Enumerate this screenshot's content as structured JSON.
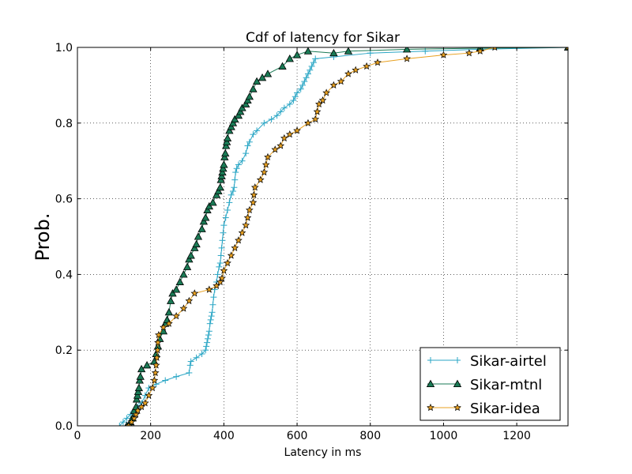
{
  "chart_data": {
    "type": "line",
    "title": "Cdf of latency for Sikar",
    "xlabel": "Latency in ms",
    "ylabel": "Prob.",
    "xlim": [
      0,
      1340
    ],
    "ylim": [
      0,
      1.0
    ],
    "xticks": [
      "0",
      "200",
      "400",
      "600",
      "800",
      "1000",
      "1200"
    ],
    "xtick_values": [
      0,
      200,
      400,
      600,
      800,
      1000,
      1200
    ],
    "yticks": [
      "0.0",
      "0.2",
      "0.4",
      "0.6",
      "0.8",
      "1.0"
    ],
    "ytick_values": [
      0,
      0.2,
      0.4,
      0.6,
      0.8,
      1.0
    ],
    "grid": true,
    "legend_position": "lower-right",
    "series": [
      {
        "name": "Sikar-airtel",
        "color": "#2aa6c5",
        "marker": "plus",
        "points": [
          [
            115,
            0.0
          ],
          [
            125,
            0.01
          ],
          [
            135,
            0.02
          ],
          [
            145,
            0.03
          ],
          [
            155,
            0.04
          ],
          [
            165,
            0.05
          ],
          [
            175,
            0.06
          ],
          [
            185,
            0.08
          ],
          [
            195,
            0.1
          ],
          [
            215,
            0.11
          ],
          [
            240,
            0.12
          ],
          [
            270,
            0.13
          ],
          [
            305,
            0.14
          ],
          [
            308,
            0.16
          ],
          [
            310,
            0.17
          ],
          [
            325,
            0.18
          ],
          [
            340,
            0.19
          ],
          [
            350,
            0.2
          ],
          [
            352,
            0.21
          ],
          [
            354,
            0.22
          ],
          [
            356,
            0.23
          ],
          [
            358,
            0.24
          ],
          [
            360,
            0.25
          ],
          [
            362,
            0.27
          ],
          [
            364,
            0.28
          ],
          [
            366,
            0.29
          ],
          [
            368,
            0.3
          ],
          [
            370,
            0.32
          ],
          [
            372,
            0.34
          ],
          [
            375,
            0.36
          ],
          [
            380,
            0.38
          ],
          [
            383,
            0.4
          ],
          [
            387,
            0.42
          ],
          [
            390,
            0.43
          ],
          [
            392,
            0.45
          ],
          [
            394,
            0.47
          ],
          [
            396,
            0.49
          ],
          [
            398,
            0.51
          ],
          [
            400,
            0.53
          ],
          [
            405,
            0.55
          ],
          [
            410,
            0.57
          ],
          [
            415,
            0.59
          ],
          [
            420,
            0.61
          ],
          [
            425,
            0.62
          ],
          [
            428,
            0.63
          ],
          [
            430,
            0.65
          ],
          [
            432,
            0.67
          ],
          [
            435,
            0.68
          ],
          [
            440,
            0.69
          ],
          [
            450,
            0.7
          ],
          [
            460,
            0.72
          ],
          [
            465,
            0.74
          ],
          [
            470,
            0.75
          ],
          [
            480,
            0.77
          ],
          [
            490,
            0.78
          ],
          [
            510,
            0.8
          ],
          [
            530,
            0.81
          ],
          [
            545,
            0.82
          ],
          [
            555,
            0.83
          ],
          [
            565,
            0.84
          ],
          [
            580,
            0.85
          ],
          [
            590,
            0.86
          ],
          [
            595,
            0.87
          ],
          [
            600,
            0.88
          ],
          [
            610,
            0.89
          ],
          [
            615,
            0.9
          ],
          [
            620,
            0.91
          ],
          [
            625,
            0.92
          ],
          [
            630,
            0.93
          ],
          [
            635,
            0.94
          ],
          [
            640,
            0.95
          ],
          [
            645,
            0.96
          ],
          [
            650,
            0.97
          ],
          [
            700,
            0.975
          ],
          [
            800,
            0.985
          ],
          [
            950,
            0.99
          ],
          [
            1100,
            0.995
          ],
          [
            1340,
            1.0
          ]
        ]
      },
      {
        "name": "Sikar-mtnl",
        "color": "#1a7a55",
        "marker": "triangle",
        "points": [
          [
            135,
            0.0
          ],
          [
            145,
            0.01
          ],
          [
            150,
            0.02
          ],
          [
            155,
            0.04
          ],
          [
            160,
            0.05
          ],
          [
            162,
            0.07
          ],
          [
            164,
            0.08
          ],
          [
            166,
            0.09
          ],
          [
            168,
            0.1
          ],
          [
            170,
            0.12
          ],
          [
            172,
            0.13
          ],
          [
            175,
            0.15
          ],
          [
            190,
            0.16
          ],
          [
            210,
            0.17
          ],
          [
            215,
            0.19
          ],
          [
            220,
            0.21
          ],
          [
            225,
            0.23
          ],
          [
            235,
            0.25
          ],
          [
            240,
            0.27
          ],
          [
            245,
            0.28
          ],
          [
            250,
            0.3
          ],
          [
            255,
            0.33
          ],
          [
            260,
            0.35
          ],
          [
            270,
            0.36
          ],
          [
            280,
            0.38
          ],
          [
            290,
            0.4
          ],
          [
            300,
            0.42
          ],
          [
            305,
            0.44
          ],
          [
            310,
            0.45
          ],
          [
            320,
            0.47
          ],
          [
            325,
            0.48
          ],
          [
            330,
            0.5
          ],
          [
            340,
            0.52
          ],
          [
            345,
            0.54
          ],
          [
            350,
            0.55
          ],
          [
            355,
            0.57
          ],
          [
            360,
            0.58
          ],
          [
            370,
            0.59
          ],
          [
            380,
            0.61
          ],
          [
            385,
            0.62
          ],
          [
            390,
            0.63
          ],
          [
            392,
            0.65
          ],
          [
            394,
            0.66
          ],
          [
            396,
            0.67
          ],
          [
            398,
            0.68
          ],
          [
            400,
            0.69
          ],
          [
            402,
            0.71
          ],
          [
            404,
            0.72
          ],
          [
            406,
            0.74
          ],
          [
            408,
            0.75
          ],
          [
            410,
            0.76
          ],
          [
            415,
            0.78
          ],
          [
            420,
            0.79
          ],
          [
            425,
            0.8
          ],
          [
            430,
            0.81
          ],
          [
            440,
            0.82
          ],
          [
            445,
            0.83
          ],
          [
            450,
            0.84
          ],
          [
            460,
            0.85
          ],
          [
            465,
            0.86
          ],
          [
            470,
            0.87
          ],
          [
            480,
            0.89
          ],
          [
            490,
            0.91
          ],
          [
            505,
            0.92
          ],
          [
            520,
            0.93
          ],
          [
            560,
            0.95
          ],
          [
            580,
            0.97
          ],
          [
            600,
            0.98
          ],
          [
            630,
            0.99
          ],
          [
            700,
            0.985
          ],
          [
            740,
            0.99
          ],
          [
            900,
            0.995
          ],
          [
            1100,
            0.998
          ],
          [
            1340,
            1.0
          ]
        ]
      },
      {
        "name": "Sikar-idea",
        "color": "#e8a020",
        "marker": "star",
        "points": [
          [
            140,
            0.0
          ],
          [
            148,
            0.01
          ],
          [
            155,
            0.02
          ],
          [
            160,
            0.03
          ],
          [
            165,
            0.04
          ],
          [
            175,
            0.05
          ],
          [
            185,
            0.06
          ],
          [
            195,
            0.08
          ],
          [
            205,
            0.1
          ],
          [
            210,
            0.12
          ],
          [
            213,
            0.14
          ],
          [
            215,
            0.16
          ],
          [
            217,
            0.18
          ],
          [
            219,
            0.2
          ],
          [
            220,
            0.22
          ],
          [
            222,
            0.24
          ],
          [
            235,
            0.26
          ],
          [
            250,
            0.27
          ],
          [
            270,
            0.29
          ],
          [
            290,
            0.31
          ],
          [
            305,
            0.33
          ],
          [
            320,
            0.35
          ],
          [
            360,
            0.36
          ],
          [
            380,
            0.37
          ],
          [
            390,
            0.38
          ],
          [
            395,
            0.39
          ],
          [
            400,
            0.41
          ],
          [
            410,
            0.43
          ],
          [
            420,
            0.45
          ],
          [
            430,
            0.47
          ],
          [
            440,
            0.49
          ],
          [
            450,
            0.51
          ],
          [
            460,
            0.53
          ],
          [
            465,
            0.55
          ],
          [
            470,
            0.57
          ],
          [
            480,
            0.59
          ],
          [
            482,
            0.61
          ],
          [
            485,
            0.63
          ],
          [
            500,
            0.65
          ],
          [
            510,
            0.67
          ],
          [
            515,
            0.69
          ],
          [
            520,
            0.71
          ],
          [
            540,
            0.73
          ],
          [
            555,
            0.74
          ],
          [
            565,
            0.76
          ],
          [
            580,
            0.77
          ],
          [
            600,
            0.78
          ],
          [
            630,
            0.8
          ],
          [
            650,
            0.81
          ],
          [
            655,
            0.83
          ],
          [
            660,
            0.85
          ],
          [
            670,
            0.86
          ],
          [
            680,
            0.88
          ],
          [
            700,
            0.9
          ],
          [
            720,
            0.91
          ],
          [
            740,
            0.93
          ],
          [
            760,
            0.94
          ],
          [
            790,
            0.95
          ],
          [
            820,
            0.96
          ],
          [
            900,
            0.97
          ],
          [
            1000,
            0.98
          ],
          [
            1070,
            0.985
          ],
          [
            1100,
            0.99
          ],
          [
            1140,
            1.0
          ],
          [
            1340,
            1.0
          ]
        ]
      }
    ]
  }
}
